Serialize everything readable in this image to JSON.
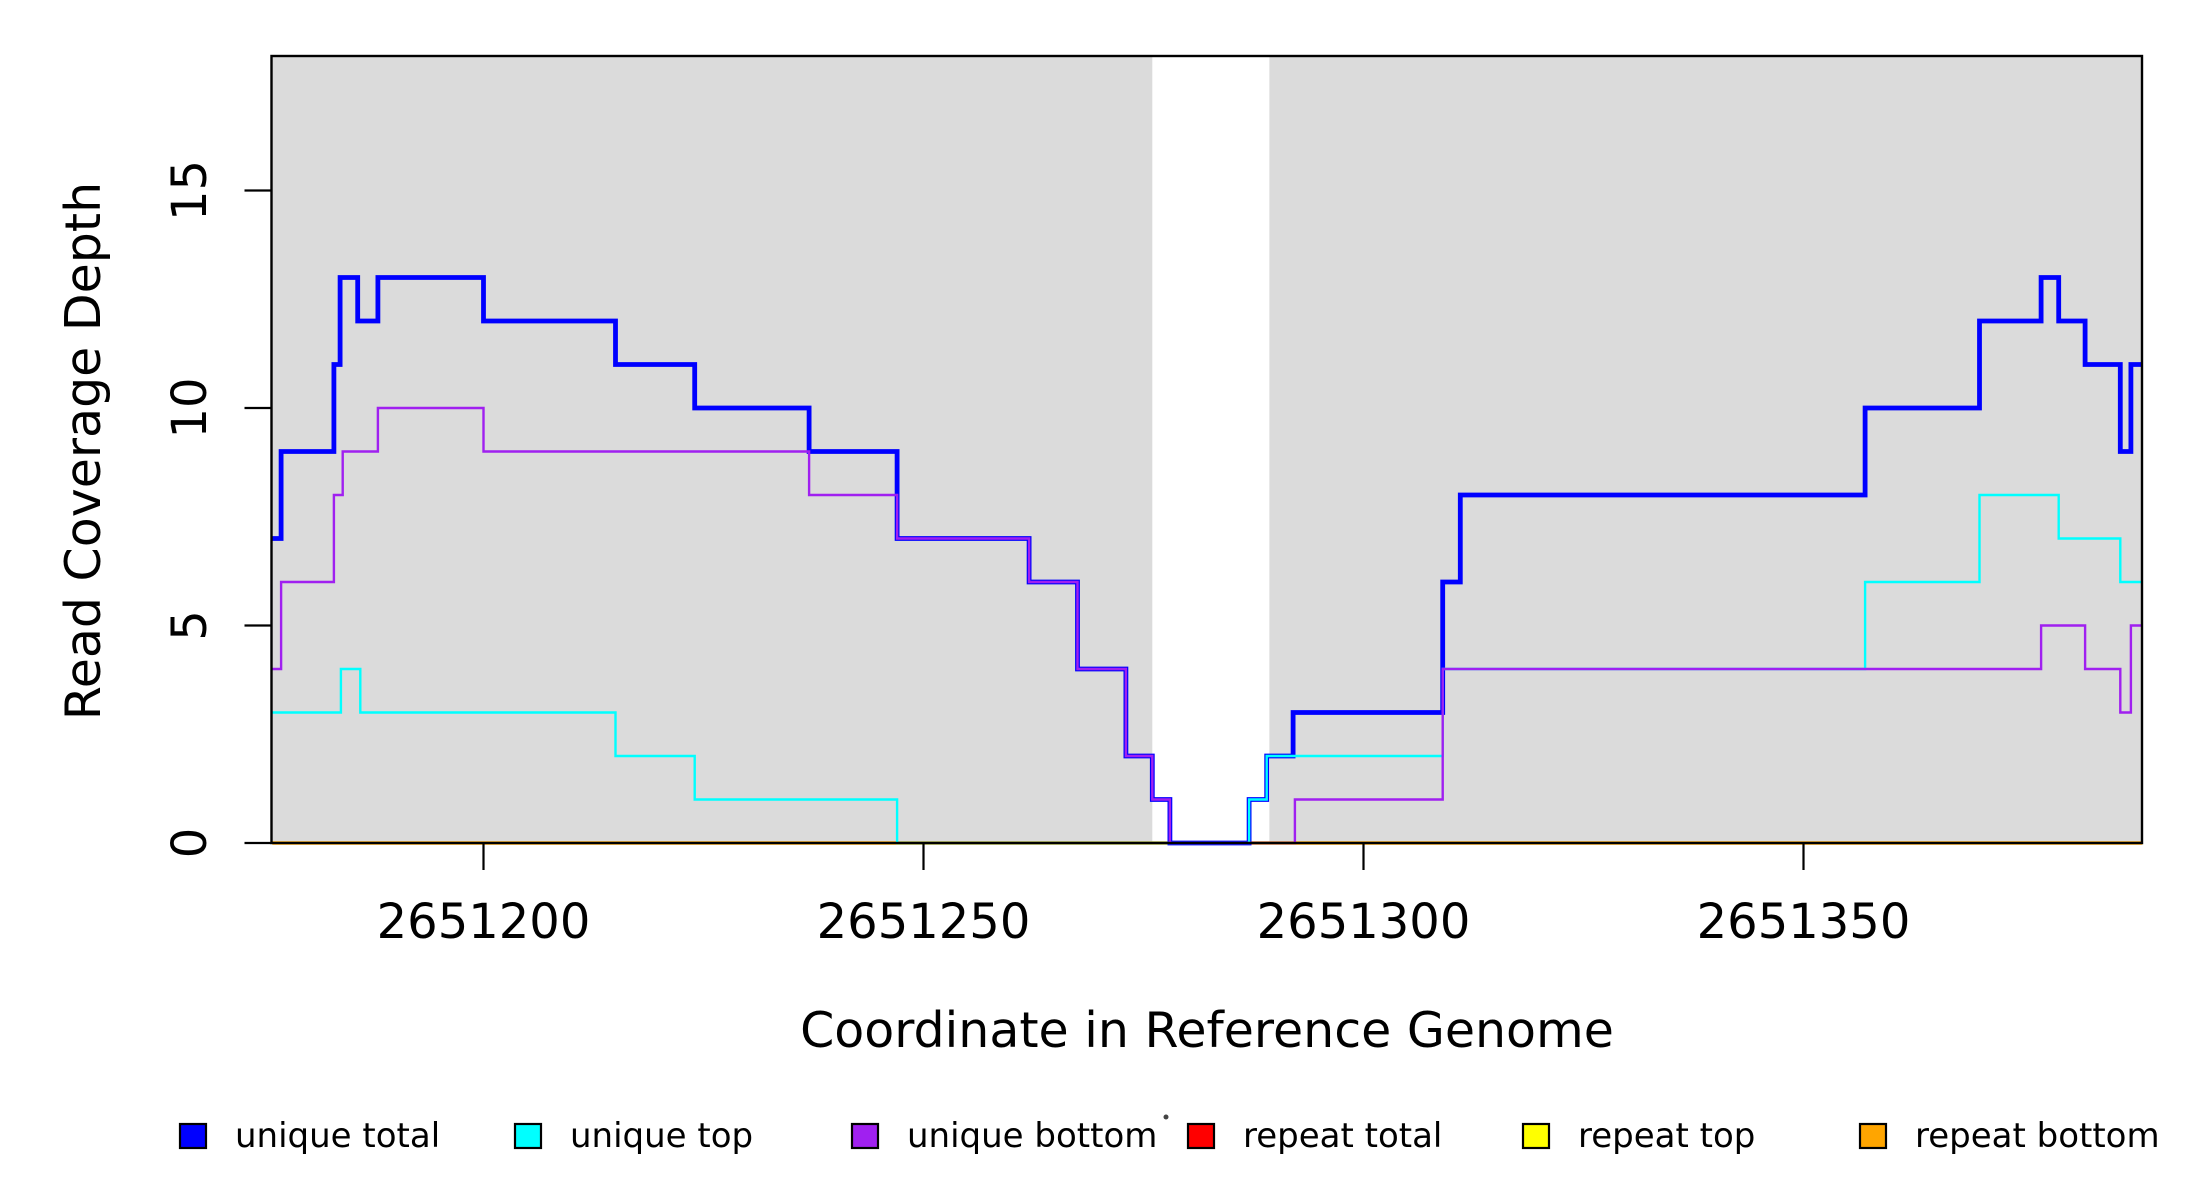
{
  "figure": {
    "background": "#ffffff",
    "band_color": "#dbdbdb",
    "box_color": "#000000",
    "speck": {
      "present": true
    }
  },
  "chart_data": {
    "type": "line",
    "step": true,
    "xlabel": "Coordinate in Reference Genome",
    "ylabel": "Read Coverage Depth",
    "x_ticks": [
      "2651200",
      "2651250",
      "2651300",
      "2651350"
    ],
    "x_tick_values": [
      2651200,
      2651250,
      2651300,
      2651350
    ],
    "y_ticks": [
      "0",
      "5",
      "10",
      "15"
    ],
    "y_tick_values": [
      0,
      5,
      10,
      15
    ],
    "x_range": [
      2651176,
      2651388.5
    ],
    "y_range": [
      0,
      18.1
    ],
    "grid": false,
    "shaded_regions": [
      [
        2651176,
        2651276
      ],
      [
        2651289.3,
        2651388.5
      ]
    ],
    "series": [
      {
        "name": "unique total",
        "color": "#0000FF",
        "line_width": 4.8,
        "steps": [
          [
            2651176,
            7
          ],
          [
            2651177,
            9
          ],
          [
            2651183,
            11
          ],
          [
            2651183.7,
            13
          ],
          [
            2651185.7,
            12
          ],
          [
            2651188,
            13
          ],
          [
            2651200,
            12
          ],
          [
            2651215,
            11
          ],
          [
            2651224,
            10
          ],
          [
            2651237,
            9
          ],
          [
            2651247,
            7
          ],
          [
            2651262,
            6
          ],
          [
            2651267.5,
            4
          ],
          [
            2651273,
            2
          ],
          [
            2651276,
            1
          ],
          [
            2651278,
            0
          ],
          [
            2651287,
            1
          ],
          [
            2651289,
            2
          ],
          [
            2651292,
            3
          ],
          [
            2651309,
            6
          ],
          [
            2651311,
            8
          ],
          [
            2651357,
            10
          ],
          [
            2651370,
            12
          ],
          [
            2651377,
            13
          ],
          [
            2651379,
            12
          ],
          [
            2651382,
            11
          ],
          [
            2651386,
            9
          ],
          [
            2651387.2,
            11
          ]
        ]
      },
      {
        "name": "unique top",
        "color": "#00FFFF",
        "line_width": 2.4,
        "steps": [
          [
            2651176,
            3
          ],
          [
            2651183.8,
            4
          ],
          [
            2651186,
            3
          ],
          [
            2651215,
            2
          ],
          [
            2651224,
            1
          ],
          [
            2651247,
            0
          ],
          [
            2651287,
            1
          ],
          [
            2651289,
            2
          ],
          [
            2651309,
            4
          ],
          [
            2651357,
            6
          ],
          [
            2651370,
            8
          ],
          [
            2651379,
            7
          ],
          [
            2651386,
            6
          ]
        ]
      },
      {
        "name": "unique bottom",
        "color": "#A020F0",
        "line_width": 2.4,
        "steps": [
          [
            2651176,
            4
          ],
          [
            2651177,
            6
          ],
          [
            2651183,
            8
          ],
          [
            2651184,
            9
          ],
          [
            2651188,
            10
          ],
          [
            2651200,
            9
          ],
          [
            2651237,
            8
          ],
          [
            2651247,
            7
          ],
          [
            2651262,
            6
          ],
          [
            2651267.5,
            4
          ],
          [
            2651273,
            2
          ],
          [
            2651276,
            1
          ],
          [
            2651278,
            0
          ],
          [
            2651292.2,
            1
          ],
          [
            2651309,
            4
          ],
          [
            2651377,
            5
          ],
          [
            2651382,
            4
          ],
          [
            2651386,
            3
          ],
          [
            2651387.2,
            5
          ]
        ]
      },
      {
        "name": "repeat total",
        "color": "#FF0000",
        "line_width": 2.4,
        "steps": [
          [
            2651176,
            0
          ]
        ]
      },
      {
        "name": "repeat top",
        "color": "#FFFF00",
        "line_width": 2.4,
        "steps": [
          [
            2651176,
            0
          ]
        ]
      },
      {
        "name": "repeat bottom",
        "color": "#FFA500",
        "line_width": 3.5,
        "steps": [
          [
            2651176,
            0
          ]
        ]
      }
    ],
    "draw_order": [
      3,
      4,
      5,
      0,
      1,
      2
    ],
    "legend": {
      "position": "bottom",
      "items": [
        "unique total",
        "unique top",
        "unique bottom",
        "repeat total",
        "repeat top",
        "repeat bottom"
      ]
    }
  }
}
